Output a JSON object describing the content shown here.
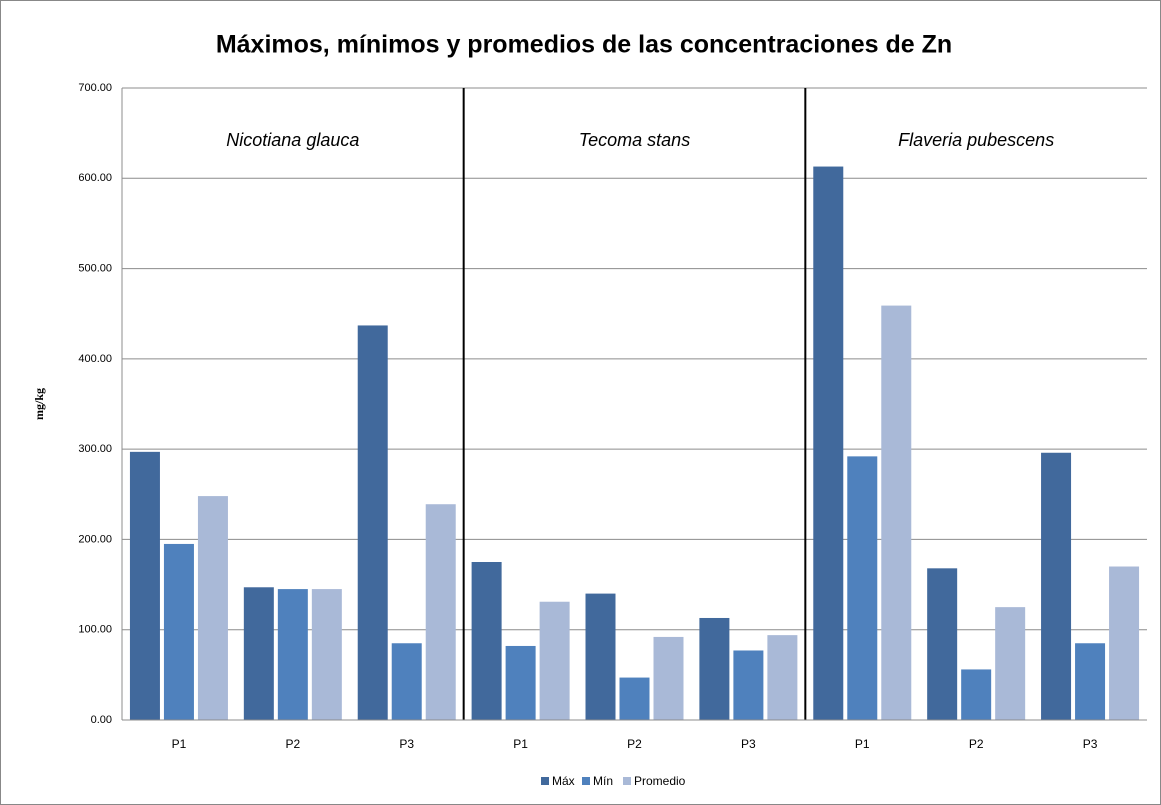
{
  "chart_data": {
    "type": "bar",
    "title": "Máximos, mínimos y promedios de las concentraciones de Zn",
    "y_label": "mg/kg",
    "groups": [
      "Nicotiana glauca",
      "Tecoma stans",
      "Flaveria pubescens"
    ],
    "categories": [
      "P1",
      "P2",
      "P3",
      "P1",
      "P2",
      "P3",
      "P1",
      "P2",
      "P3"
    ],
    "series": [
      {
        "name": "Máx",
        "color": "#41699c",
        "values": [
          297,
          147,
          437,
          175,
          140,
          113,
          613,
          168,
          296
        ]
      },
      {
        "name": "Mín",
        "color": "#4f81bd",
        "values": [
          195,
          145,
          85,
          82,
          47,
          77,
          292,
          56,
          85
        ]
      },
      {
        "name": "Promedio",
        "color": "#a9b9d7",
        "values": [
          248,
          145,
          239,
          131,
          92,
          94,
          459,
          125,
          170
        ]
      }
    ],
    "ylim": [
      0,
      700
    ],
    "yticks": [
      {
        "value": 0,
        "label": "0.00"
      },
      {
        "value": 100,
        "label": "100.00"
      },
      {
        "value": 200,
        "label": "200.00"
      },
      {
        "value": 300,
        "label": "300.00"
      },
      {
        "value": 400,
        "label": "400.00"
      },
      {
        "value": 500,
        "label": "500.00"
      },
      {
        "value": 600,
        "label": "600.00"
      },
      {
        "value": 700,
        "label": "700.00"
      }
    ],
    "grid": true,
    "legend": "bottom"
  }
}
